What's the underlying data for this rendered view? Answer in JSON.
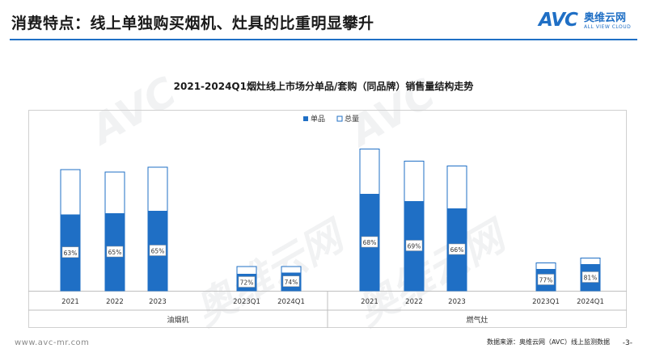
{
  "header": {
    "title": "消费特点：线上单独购买烟机、灶具的比重明显攀升"
  },
  "logo": {
    "mark": "AVC",
    "cn": "奥维云网",
    "en": "ALL VIEW CLOUD"
  },
  "watermark": {
    "mark": "AVC",
    "cn": "奥维云网"
  },
  "footer": {
    "url": "www.avc-mr.com",
    "source": "数据来源：奥维云网（AVC）线上监测数据",
    "page": "-3-"
  },
  "colors": {
    "single": "#1f6fc5",
    "total_fill": "#ffffff",
    "total_stroke": "#1f6fc5",
    "brand": "#1f6fc5"
  },
  "chart_data": {
    "type": "bar",
    "title": "2021-2024Q1烟灶线上市场分单品/套购（同品牌）销售量结构走势",
    "legend": [
      "单品",
      "总量"
    ],
    "legend_position": "top",
    "groups": [
      {
        "label": "油烟机",
        "categories": [
          "2021",
          "2022",
          "2023",
          "2023Q1",
          "2024Q1"
        ],
        "series": [
          {
            "name": "总量",
            "values": [
              1.0,
              0.98,
              1.02,
              0.2,
              0.2
            ]
          },
          {
            "name": "单品",
            "values": [
              0.63,
              0.64,
              0.66,
              0.14,
              0.15
            ]
          }
        ],
        "data_labels": [
          "63%",
          "65%",
          "65%",
          "72%",
          "74%"
        ]
      },
      {
        "label": "燃气灶",
        "categories": [
          "2021",
          "2022",
          "2023",
          "2023Q1",
          "2024Q1"
        ],
        "series": [
          {
            "name": "总量",
            "values": [
              1.17,
              1.07,
              1.03,
              0.23,
              0.27
            ]
          },
          {
            "name": "单品",
            "values": [
              0.8,
              0.74,
              0.68,
              0.18,
              0.22
            ]
          }
        ],
        "data_labels": [
          "68%",
          "69%",
          "66%",
          "77%",
          "81%"
        ]
      }
    ]
  }
}
